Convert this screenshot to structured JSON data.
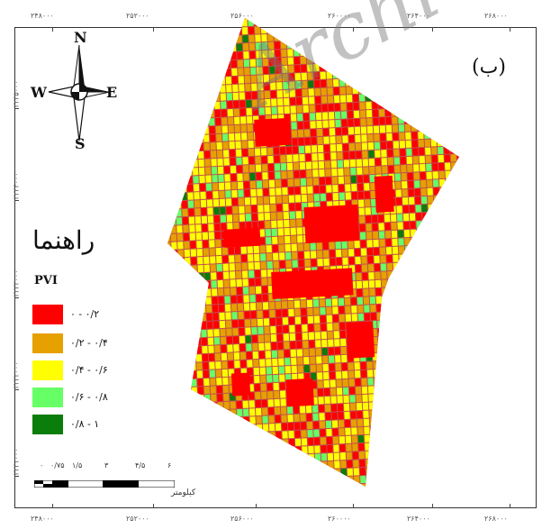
{
  "panel_label": "(ب)",
  "watermark": "Archi",
  "coordinates": {
    "x_ticks": [
      "۲۴۸۰۰۰",
      "۲۵۲۰۰۰",
      "۲۵۶۰۰۰",
      "۲۶۰۰۰۰",
      "۲۶۴۰۰۰",
      "۲۶۸۰۰۰"
    ],
    "y_ticks": [
      "۳۲۳۵۰۰۰",
      "۳۲۳۴۰۰۰",
      "۳۲۳۳۰۰۰",
      "۳۲۳۲۰۰۰",
      "۳۲۳۱۰۰۰"
    ]
  },
  "north_arrow": {
    "n": "N",
    "s": "S",
    "e": "E",
    "w": "W"
  },
  "legend": {
    "title": "راهنما",
    "variable": "PVI",
    "items": [
      {
        "label": "۰ - ۰/۲",
        "color": "#ff0000"
      },
      {
        "label": "۰/۲ - ۰/۴",
        "color": "#e6a000"
      },
      {
        "label": "۰/۴ - ۰/۶",
        "color": "#ffff00"
      },
      {
        "label": "۰/۶ - ۰/۸",
        "color": "#66ff66"
      },
      {
        "label": "۰/۸ - ۱",
        "color": "#0a7d0a"
      }
    ]
  },
  "scale": {
    "labels": [
      "۰",
      "۰/۷۵",
      "۱/۵",
      "۳",
      "۴/۵",
      "۶"
    ],
    "unit": "کیلومتر"
  }
}
